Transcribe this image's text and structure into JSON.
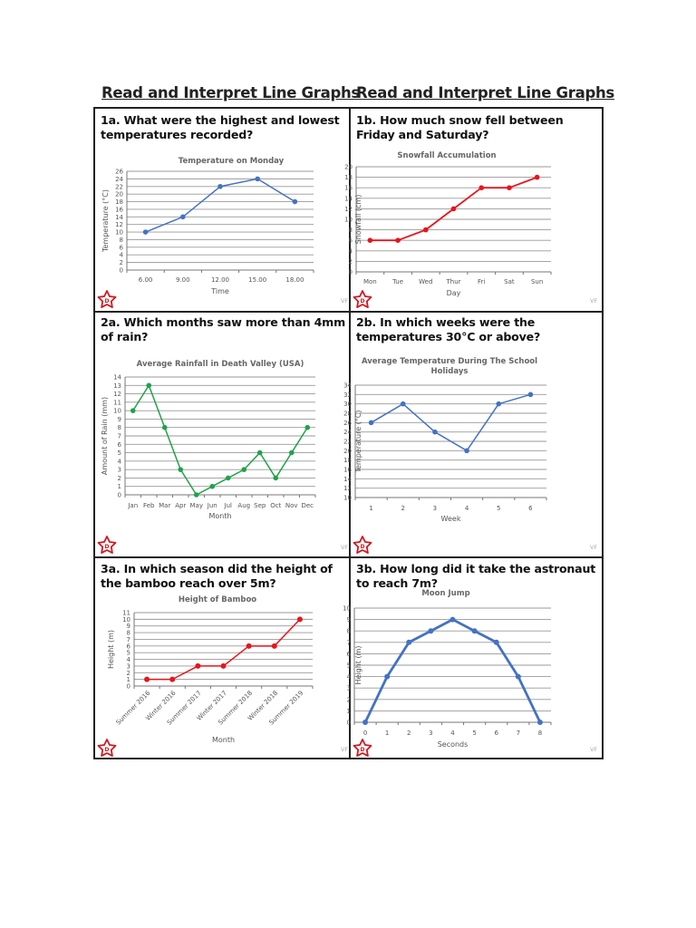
{
  "headings": [
    "Read and Interpret Line Graphs",
    "Read and Interpret Line Graphs"
  ],
  "questions": [
    "1a. What were the highest and lowest temperatures recorded?",
    "1b. How much snow fell between Friday and Saturday?",
    "2a. Which months saw more than 4mm of rain?",
    "2b. In which weeks were the temperatures 30°C or above?",
    "3a. In which season did the height of the bamboo reach over 5m?",
    "3b. How long did it take the astronaut to reach 7m?"
  ],
  "badge_letter": "D",
  "footer_mark": "VF",
  "icons": {
    "badge": "star-icon"
  },
  "chart_data": [
    {
      "type": "line",
      "title": "Temperature on Monday",
      "xlabel": "Time",
      "ylabel": "Temperature (°C)",
      "categories": [
        "6.00",
        "9.00",
        "12.00",
        "15.00",
        "18.00"
      ],
      "values": [
        10,
        14,
        22,
        24,
        18
      ],
      "ylim": [
        0,
        26
      ],
      "ystep": 2,
      "grid": true,
      "color": "#4472c4"
    },
    {
      "type": "line",
      "title": "Snowfall Accumulation",
      "xlabel": "Day",
      "ylabel": "Snowfall (cm)",
      "categories": [
        "Mon",
        "Tue",
        "Wed",
        "Thur",
        "Fri",
        "Sat",
        "Sun"
      ],
      "values": [
        6,
        6,
        8,
        12,
        16,
        16,
        18
      ],
      "ylim": [
        0,
        20
      ],
      "ystep": 2,
      "grid": true,
      "color": "#e8141b"
    },
    {
      "type": "line",
      "title": "Average Rainfall in Death Valley (USA)",
      "xlabel": "Month",
      "ylabel": "Amount of Rain (mm)",
      "categories": [
        "Jan",
        "Feb",
        "Mar",
        "Apr",
        "May",
        "Jun",
        "Jul",
        "Aug",
        "Sep",
        "Oct",
        "Nov",
        "Dec"
      ],
      "values": [
        10,
        13,
        8,
        3,
        0,
        1,
        2,
        3,
        5,
        2,
        5,
        8
      ],
      "ylim": [
        0,
        14
      ],
      "ystep": 1,
      "grid": true,
      "color": "#1fa34a"
    },
    {
      "type": "line",
      "title": "Average Temperature During The School Holidays",
      "xlabel": "Week",
      "ylabel": "Temperature (°C)",
      "categories": [
        "1",
        "2",
        "3",
        "4",
        "5",
        "6"
      ],
      "values": [
        26,
        30,
        24,
        20,
        30,
        32
      ],
      "ylim": [
        10,
        34
      ],
      "ystep": 2,
      "grid": true,
      "color": "#4472c4"
    },
    {
      "type": "line",
      "title": "Height of Bamboo",
      "xlabel": "Month",
      "ylabel": "Height (m)",
      "categories": [
        "Summer 2016",
        "Winter 2016",
        "Summer 2017",
        "Winter 2017",
        "Summer 2018",
        "Winter 2018",
        "Summer 2019"
      ],
      "values": [
        1,
        1,
        3,
        3,
        6,
        6,
        10
      ],
      "ylim": [
        0,
        11
      ],
      "ystep": 1,
      "grid": true,
      "color": "#e8141b"
    },
    {
      "type": "line",
      "title": "Moon Jump",
      "xlabel": "Seconds",
      "ylabel": "Height (m)",
      "categories": [
        "0",
        "1",
        "2",
        "3",
        "4",
        "5",
        "6",
        "7",
        "8"
      ],
      "values": [
        0,
        4,
        7,
        8,
        9,
        8,
        7,
        4,
        0
      ],
      "ylim": [
        0,
        10
      ],
      "ystep": 1,
      "grid": true,
      "color": "#4472c4"
    }
  ]
}
